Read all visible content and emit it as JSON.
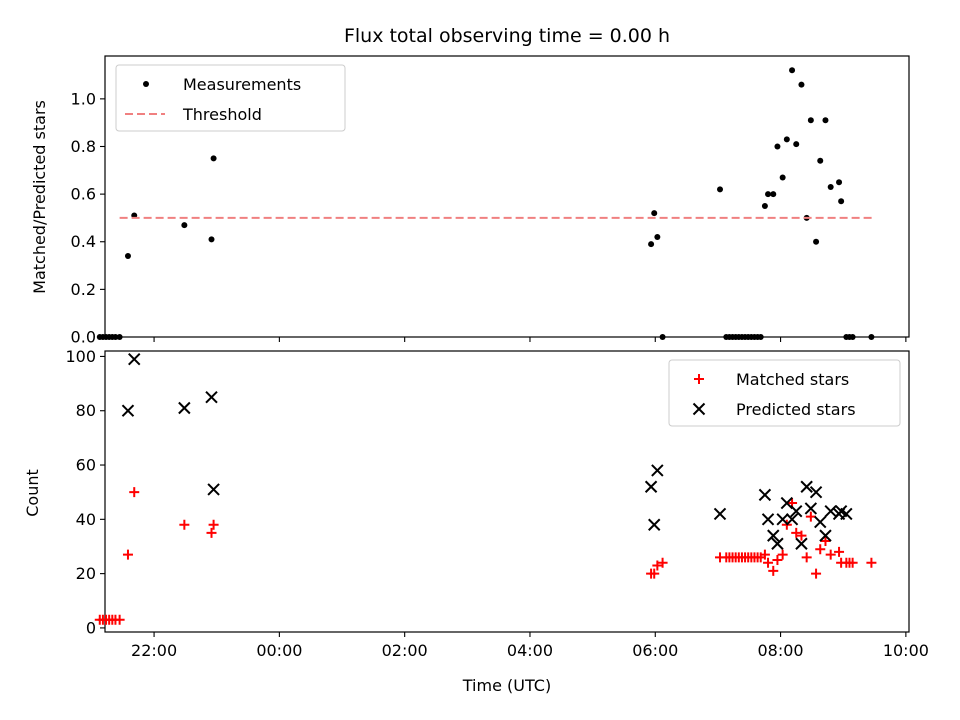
{
  "chart_data": [
    {
      "type": "scatter",
      "title": "Flux total observing time = 0.00 h",
      "xlabel": "",
      "ylabel": "Matched/Predicted stars",
      "xlim": [
        "21:13",
        "10:03"
      ],
      "ylim": [
        0,
        1.18
      ],
      "yticks": [
        "0.0",
        "0.2",
        "0.4",
        "0.6",
        "0.8",
        "1.0"
      ],
      "legend_position": "top-left",
      "series": [
        {
          "name": "Measurements",
          "color": "#000000",
          "marker": "dot",
          "points": [
            [
              "21:08",
              0.0
            ],
            [
              "21:11",
              0.0
            ],
            [
              "21:14",
              0.0
            ],
            [
              "21:17",
              0.0
            ],
            [
              "21:20",
              0.0
            ],
            [
              "21:23",
              0.0
            ],
            [
              "21:27",
              0.0
            ],
            [
              "21:35",
              0.34
            ],
            [
              "21:41",
              0.51
            ],
            [
              "22:29",
              0.47
            ],
            [
              "22:55",
              0.41
            ],
            [
              "22:57",
              0.75
            ],
            [
              "05:56",
              0.39
            ],
            [
              "05:59",
              0.52
            ],
            [
              "06:02",
              0.42
            ],
            [
              "06:07",
              0.0
            ],
            [
              "07:02",
              0.62
            ],
            [
              "07:08",
              0.0
            ],
            [
              "07:11",
              0.0
            ],
            [
              "07:14",
              0.0
            ],
            [
              "07:17",
              0.0
            ],
            [
              "07:20",
              0.0
            ],
            [
              "07:23",
              0.0
            ],
            [
              "07:26",
              0.0
            ],
            [
              "07:29",
              0.0
            ],
            [
              "07:32",
              0.0
            ],
            [
              "07:35",
              0.0
            ],
            [
              "07:38",
              0.0
            ],
            [
              "07:41",
              0.0
            ],
            [
              "07:45",
              0.55
            ],
            [
              "07:48",
              0.6
            ],
            [
              "07:53",
              0.6
            ],
            [
              "07:57",
              0.8
            ],
            [
              "08:02",
              0.67
            ],
            [
              "08:06",
              0.83
            ],
            [
              "08:11",
              1.12
            ],
            [
              "08:15",
              0.81
            ],
            [
              "08:20",
              1.06
            ],
            [
              "08:25",
              0.5
            ],
            [
              "08:29",
              0.91
            ],
            [
              "08:34",
              0.4
            ],
            [
              "08:38",
              0.74
            ],
            [
              "08:43",
              0.91
            ],
            [
              "08:48",
              0.63
            ],
            [
              "08:56",
              0.65
            ],
            [
              "08:58",
              0.57
            ],
            [
              "09:03",
              0.0
            ],
            [
              "09:06",
              0.0
            ],
            [
              "09:09",
              0.0
            ],
            [
              "09:27",
              0.0
            ]
          ]
        },
        {
          "name": "Threshold",
          "color": "#f08080",
          "style": "dashed",
          "points": [
            [
              "21:27",
              0.5
            ],
            [
              "09:30",
              0.5
            ]
          ]
        }
      ]
    },
    {
      "type": "scatter",
      "title": "",
      "xlabel": "Time (UTC)",
      "ylabel": "Count",
      "xlim": [
        "21:13",
        "10:03"
      ],
      "ylim": [
        -1.5,
        102
      ],
      "xticks": [
        "22:00",
        "00:00",
        "02:00",
        "04:00",
        "06:00",
        "08:00",
        "10:00"
      ],
      "yticks": [
        "0",
        "20",
        "40",
        "60",
        "80",
        "100"
      ],
      "legend_position": "top-right",
      "series": [
        {
          "name": "Matched stars",
          "color": "#ff0000",
          "marker": "plus",
          "points": [
            [
              "21:08",
              3
            ],
            [
              "21:11",
              3
            ],
            [
              "21:14",
              3
            ],
            [
              "21:17",
              3
            ],
            [
              "21:20",
              3
            ],
            [
              "21:23",
              3
            ],
            [
              "21:27",
              3
            ],
            [
              "21:35",
              27
            ],
            [
              "21:41",
              50
            ],
            [
              "22:29",
              38
            ],
            [
              "22:55",
              35
            ],
            [
              "22:57",
              38
            ],
            [
              "05:56",
              20
            ],
            [
              "05:59",
              20
            ],
            [
              "06:02",
              23
            ],
            [
              "06:07",
              24
            ],
            [
              "07:02",
              26
            ],
            [
              "07:08",
              26
            ],
            [
              "07:11",
              26
            ],
            [
              "07:14",
              26
            ],
            [
              "07:17",
              26
            ],
            [
              "07:20",
              26
            ],
            [
              "07:23",
              26
            ],
            [
              "07:26",
              26
            ],
            [
              "07:29",
              26
            ],
            [
              "07:32",
              26
            ],
            [
              "07:35",
              26
            ],
            [
              "07:38",
              26
            ],
            [
              "07:41",
              26
            ],
            [
              "07:45",
              27
            ],
            [
              "07:48",
              24
            ],
            [
              "07:53",
              21
            ],
            [
              "07:57",
              25
            ],
            [
              "08:02",
              27
            ],
            [
              "08:06",
              38
            ],
            [
              "08:11",
              46
            ],
            [
              "08:15",
              35
            ],
            [
              "08:20",
              34
            ],
            [
              "08:25",
              26
            ],
            [
              "08:29",
              41
            ],
            [
              "08:34",
              20
            ],
            [
              "08:38",
              29
            ],
            [
              "08:43",
              32
            ],
            [
              "08:48",
              27
            ],
            [
              "08:56",
              28
            ],
            [
              "08:58",
              24
            ],
            [
              "09:03",
              24
            ],
            [
              "09:06",
              24
            ],
            [
              "09:09",
              24
            ],
            [
              "09:27",
              24
            ]
          ]
        },
        {
          "name": "Predicted stars",
          "color": "#000000",
          "marker": "x",
          "points": [
            [
              "21:35",
              80
            ],
            [
              "21:41",
              99
            ],
            [
              "22:29",
              81
            ],
            [
              "22:55",
              85
            ],
            [
              "22:57",
              51
            ],
            [
              "05:56",
              52
            ],
            [
              "05:59",
              38
            ],
            [
              "06:02",
              58
            ],
            [
              "07:02",
              42
            ],
            [
              "07:45",
              49
            ],
            [
              "07:48",
              40
            ],
            [
              "07:53",
              34
            ],
            [
              "07:57",
              31
            ],
            [
              "08:02",
              40
            ],
            [
              "08:06",
              46
            ],
            [
              "08:11",
              40
            ],
            [
              "08:15",
              43
            ],
            [
              "08:20",
              31
            ],
            [
              "08:25",
              52
            ],
            [
              "08:29",
              44
            ],
            [
              "08:34",
              50
            ],
            [
              "08:38",
              39
            ],
            [
              "08:43",
              34
            ],
            [
              "08:48",
              43
            ],
            [
              "08:56",
              42
            ],
            [
              "08:58",
              43
            ],
            [
              "09:03",
              42
            ]
          ]
        }
      ]
    }
  ]
}
